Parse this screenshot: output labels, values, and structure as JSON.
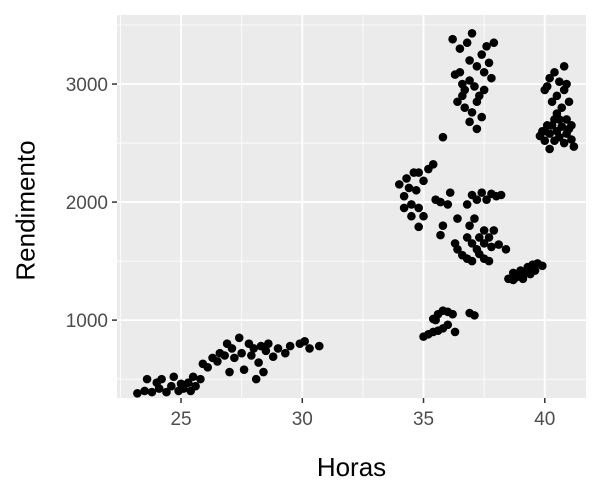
{
  "chart_data": {
    "type": "scatter",
    "title": "",
    "xlabel": "Horas",
    "ylabel": "Rendimento",
    "xlim": [
      22.36,
      41.7
    ],
    "ylim": [
      340,
      3585
    ],
    "xticks": [
      25,
      30,
      35,
      40
    ],
    "yticks": [
      1000,
      2000,
      3000
    ],
    "xtick_labels": [
      "25",
      "30",
      "35",
      "40"
    ],
    "ytick_labels": [
      "1000",
      "2000",
      "3000"
    ],
    "grid": true,
    "panel_color": "#EBEBEB",
    "point_color": "#000000",
    "points": [
      [
        23.2,
        380
      ],
      [
        23.5,
        400
      ],
      [
        23.6,
        500
      ],
      [
        23.8,
        390
      ],
      [
        24.0,
        470
      ],
      [
        24.1,
        420
      ],
      [
        24.2,
        500
      ],
      [
        24.4,
        390
      ],
      [
        24.6,
        440
      ],
      [
        24.7,
        520
      ],
      [
        24.9,
        400
      ],
      [
        25.0,
        460
      ],
      [
        25.1,
        420
      ],
      [
        25.3,
        470
      ],
      [
        25.4,
        400
      ],
      [
        25.5,
        520
      ],
      [
        25.6,
        440
      ],
      [
        25.8,
        500
      ],
      [
        25.9,
        630
      ],
      [
        26.1,
        600
      ],
      [
        26.3,
        680
      ],
      [
        26.5,
        650
      ],
      [
        26.6,
        720
      ],
      [
        26.8,
        700
      ],
      [
        27.0,
        560
      ],
      [
        27.1,
        760
      ],
      [
        27.2,
        680
      ],
      [
        27.4,
        850
      ],
      [
        27.5,
        720
      ],
      [
        27.6,
        580
      ],
      [
        27.8,
        800
      ],
      [
        27.9,
        700
      ],
      [
        28.0,
        760
      ],
      [
        28.1,
        500
      ],
      [
        28.2,
        640
      ],
      [
        28.3,
        780
      ],
      [
        28.5,
        740
      ],
      [
        28.6,
        800
      ],
      [
        28.8,
        690
      ],
      [
        29.0,
        760
      ],
      [
        29.3,
        720
      ],
      [
        29.5,
        780
      ],
      [
        29.9,
        800
      ],
      [
        30.1,
        820
      ],
      [
        30.3,
        760
      ],
      [
        30.7,
        780
      ],
      [
        26.9,
        800
      ],
      [
        28.4,
        560
      ],
      [
        36.2,
        3380
      ],
      [
        36.5,
        3300
      ],
      [
        36.8,
        3350
      ],
      [
        37.0,
        3430
      ],
      [
        36.9,
        3200
      ],
      [
        37.2,
        3150
      ],
      [
        37.4,
        3250
      ],
      [
        37.6,
        3320
      ],
      [
        37.9,
        3350
      ],
      [
        37.5,
        3100
      ],
      [
        36.3,
        3080
      ],
      [
        36.6,
        3000
      ],
      [
        36.7,
        2950
      ],
      [
        36.9,
        3030
      ],
      [
        37.1,
        2980
      ],
      [
        37.3,
        2900
      ],
      [
        37.5,
        2950
      ],
      [
        36.4,
        2850
      ],
      [
        36.7,
        2800
      ],
      [
        37.0,
        2760
      ],
      [
        37.2,
        2850
      ],
      [
        37.4,
        2720
      ],
      [
        36.9,
        2680
      ],
      [
        37.2,
        2620
      ],
      [
        36.5,
        3100
      ],
      [
        37.7,
        3180
      ],
      [
        36.6,
        2900
      ],
      [
        37.8,
        3050
      ],
      [
        40.0,
        2950
      ],
      [
        40.2,
        3050
      ],
      [
        40.4,
        3100
      ],
      [
        40.6,
        3020
      ],
      [
        40.8,
        3150
      ],
      [
        40.5,
        2900
      ],
      [
        40.3,
        2850
      ],
      [
        40.7,
        2800
      ],
      [
        40.9,
        2700
      ],
      [
        41.0,
        2850
      ],
      [
        40.1,
        2650
      ],
      [
        39.9,
        2600
      ],
      [
        39.8,
        2560
      ],
      [
        40.0,
        2520
      ],
      [
        40.2,
        2580
      ],
      [
        40.3,
        2650
      ],
      [
        40.4,
        2520
      ],
      [
        40.5,
        2600
      ],
      [
        40.6,
        2550
      ],
      [
        40.7,
        2640
      ],
      [
        40.8,
        2500
      ],
      [
        40.9,
        2580
      ],
      [
        41.0,
        2620
      ],
      [
        41.1,
        2530
      ],
      [
        41.2,
        2470
      ],
      [
        40.2,
        2450
      ],
      [
        40.4,
        2700
      ],
      [
        40.6,
        2700
      ],
      [
        40.8,
        2950
      ],
      [
        40.1,
        2980
      ],
      [
        40.9,
        3000
      ],
      [
        40.5,
        2750
      ],
      [
        40.0,
        2600
      ],
      [
        41.1,
        2650
      ],
      [
        34.0,
        2150
      ],
      [
        34.2,
        2050
      ],
      [
        34.3,
        2200
      ],
      [
        34.4,
        2120
      ],
      [
        34.5,
        1980
      ],
      [
        34.6,
        2250
      ],
      [
        34.7,
        2100
      ],
      [
        34.8,
        1950
      ],
      [
        34.8,
        2250
      ],
      [
        35.0,
        2180
      ],
      [
        35.2,
        2280
      ],
      [
        35.4,
        2320
      ],
      [
        35.5,
        2020
      ],
      [
        35.7,
        2000
      ],
      [
        35.0,
        1880
      ],
      [
        34.5,
        1880
      ],
      [
        34.8,
        1790
      ],
      [
        36.0,
        1980
      ],
      [
        35.8,
        1800
      ],
      [
        35.7,
        1720
      ],
      [
        34.2,
        1950
      ],
      [
        35.8,
        2550
      ],
      [
        36.1,
        2080
      ],
      [
        36.4,
        1860
      ],
      [
        36.8,
        1980
      ],
      [
        37.0,
        2060
      ],
      [
        37.2,
        2020
      ],
      [
        37.4,
        2080
      ],
      [
        37.6,
        2020
      ],
      [
        37.8,
        2070
      ],
      [
        38.0,
        2050
      ],
      [
        38.2,
        2060
      ],
      [
        36.9,
        1800
      ],
      [
        37.1,
        1860
      ],
      [
        37.3,
        1700
      ],
      [
        37.5,
        1760
      ],
      [
        37.7,
        1700
      ],
      [
        36.8,
        1700
      ],
      [
        37.0,
        1650
      ],
      [
        37.2,
        1600
      ],
      [
        37.5,
        1650
      ],
      [
        37.8,
        1620
      ],
      [
        38.1,
        1640
      ],
      [
        38.4,
        1600
      ],
      [
        36.4,
        1600
      ],
      [
        36.6,
        1550
      ],
      [
        36.8,
        1520
      ],
      [
        37.0,
        1500
      ],
      [
        37.3,
        1560
      ],
      [
        37.5,
        1520
      ],
      [
        37.7,
        1500
      ],
      [
        36.3,
        1650
      ],
      [
        37.9,
        1760
      ],
      [
        38.5,
        1350
      ],
      [
        38.7,
        1340
      ],
      [
        38.9,
        1380
      ],
      [
        39.0,
        1420
      ],
      [
        39.2,
        1400
      ],
      [
        39.3,
        1450
      ],
      [
        39.5,
        1470
      ],
      [
        39.7,
        1480
      ],
      [
        39.9,
        1460
      ],
      [
        38.7,
        1400
      ],
      [
        39.1,
        1350
      ],
      [
        39.4,
        1390
      ],
      [
        38.8,
        1360
      ],
      [
        39.6,
        1420
      ],
      [
        35.0,
        860
      ],
      [
        35.2,
        880
      ],
      [
        35.4,
        900
      ],
      [
        35.6,
        910
      ],
      [
        35.8,
        930
      ],
      [
        36.0,
        960
      ],
      [
        36.3,
        900
      ],
      [
        35.4,
        1010
      ],
      [
        35.6,
        1050
      ],
      [
        35.8,
        1080
      ],
      [
        36.0,
        1070
      ],
      [
        36.2,
        1050
      ],
      [
        36.9,
        1060
      ],
      [
        37.1,
        1040
      ],
      [
        35.5,
        1000
      ]
    ]
  }
}
